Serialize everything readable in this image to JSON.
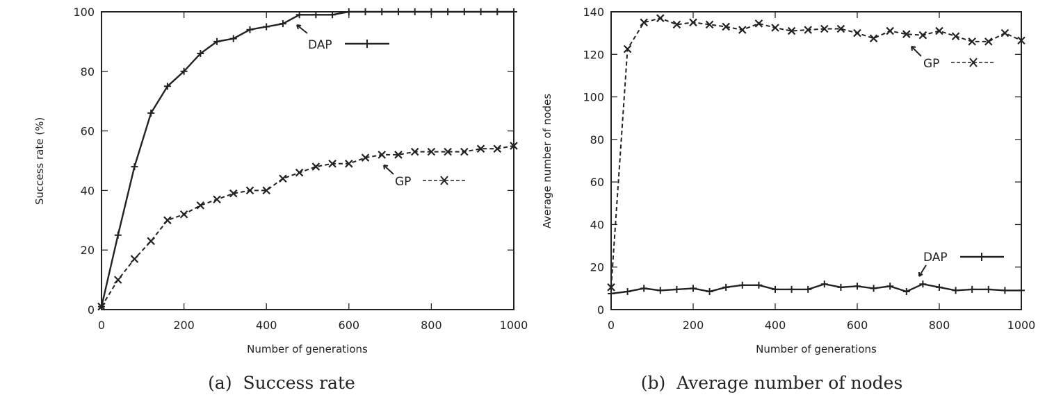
{
  "chart_data": [
    {
      "type": "line",
      "id": "a",
      "caption": "(a)  Success rate",
      "xlabel": "Number of generations",
      "ylabel": "Success rate (%)",
      "xlim": [
        0,
        1000
      ],
      "ylim": [
        0,
        100
      ],
      "xticks": [
        0,
        200,
        400,
        600,
        800,
        1000
      ],
      "yticks": [
        0,
        20,
        40,
        60,
        80,
        100
      ],
      "grid": false,
      "x": [
        0,
        40,
        80,
        120,
        160,
        200,
        240,
        280,
        320,
        360,
        400,
        440,
        480,
        520,
        560,
        600,
        640,
        680,
        720,
        760,
        800,
        840,
        880,
        920,
        960,
        1000
      ],
      "series": [
        {
          "name": "DAP",
          "style": "solid",
          "marker": "plus",
          "legend_position": "top-center",
          "values": [
            1,
            25,
            48,
            66,
            75,
            80,
            86,
            90,
            91,
            94,
            95,
            96,
            99,
            99,
            99,
            100,
            100,
            100,
            100,
            100,
            100,
            100,
            100,
            100,
            100,
            100
          ]
        },
        {
          "name": "GP",
          "style": "dashed",
          "marker": "cross",
          "legend_position": "center-right",
          "values": [
            1,
            10,
            17,
            23,
            30,
            32,
            35,
            37,
            39,
            40,
            40,
            44,
            46,
            48,
            49,
            49,
            51,
            52,
            52,
            53,
            53,
            53,
            53,
            54,
            54,
            55
          ]
        }
      ]
    },
    {
      "type": "line",
      "id": "b",
      "caption": "(b)  Average number of nodes",
      "xlabel": "Number of generations",
      "ylabel": "Average number of nodes",
      "xlim": [
        0,
        1000
      ],
      "ylim": [
        0,
        140
      ],
      "xticks": [
        0,
        200,
        400,
        600,
        800,
        1000
      ],
      "yticks": [
        0,
        20,
        40,
        60,
        80,
        100,
        120,
        140
      ],
      "grid": false,
      "x": [
        0,
        40,
        80,
        120,
        160,
        200,
        240,
        280,
        320,
        360,
        400,
        440,
        480,
        520,
        560,
        600,
        640,
        680,
        720,
        760,
        800,
        840,
        880,
        920,
        960,
        1000
      ],
      "series": [
        {
          "name": "GP",
          "style": "dashed",
          "marker": "cross",
          "legend_position": "top-right",
          "values": [
            10.5,
            122.5,
            135,
            137,
            134,
            135,
            134,
            133,
            131.5,
            134.5,
            132.5,
            131,
            131.5,
            132,
            132,
            130,
            127.5,
            131,
            129.5,
            129,
            131,
            128.5,
            126,
            126,
            130,
            126.5
          ]
        },
        {
          "name": "DAP",
          "style": "solid",
          "marker": "plus",
          "legend_position": "bottom-right",
          "values": [
            7.5,
            8.5,
            10,
            9,
            9.5,
            10,
            8.5,
            10.5,
            11.5,
            11.5,
            9.5,
            9.5,
            9.5,
            12,
            10.5,
            11,
            10,
            11,
            8.5,
            12,
            10.5,
            9,
            9.5,
            9.5,
            9,
            9
          ]
        }
      ]
    }
  ]
}
